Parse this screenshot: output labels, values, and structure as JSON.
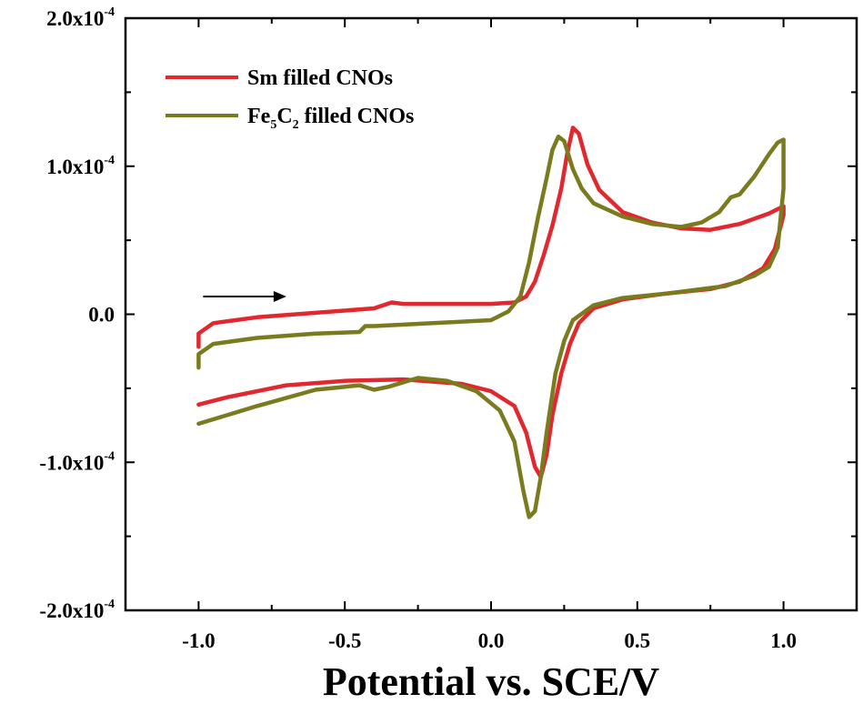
{
  "chart_data": {
    "type": "line",
    "title": "",
    "xlabel": "Potential vs. SCE/V",
    "ylabel": "",
    "xlim": [
      -1.25,
      1.25
    ],
    "ylim": [
      -0.0002,
      0.0002
    ],
    "x_ticks": [
      -1.0,
      -0.5,
      0.0,
      0.5,
      1.0
    ],
    "x_tick_labels": [
      "-1.0",
      "-0.5",
      "0.0",
      "0.5",
      "1.0"
    ],
    "y_ticks": [
      0.0002,
      0.0001,
      0.0,
      -0.0001,
      -0.0002
    ],
    "y_tick_labels": [
      {
        "mantissa": "2.0x10",
        "exp": "-4"
      },
      {
        "mantissa": "1.0x10",
        "exp": "-4"
      },
      {
        "mantissa": "0.0",
        "exp": ""
      },
      {
        "mantissa": "-1.0x10",
        "exp": "-4"
      },
      {
        "mantissa": "-2.0x10",
        "exp": "-4"
      }
    ],
    "grid": false,
    "legend_position": "top-left",
    "annotation": {
      "type": "arrow",
      "direction": "right",
      "from": [
        -1.0,
        1.2e-05
      ],
      "to": [
        -0.7,
        1.2e-05
      ]
    },
    "series": [
      {
        "name": "Sm filled CNOs",
        "color": "#e0282e",
        "x": [
          -1.0,
          -1.0,
          -0.95,
          -0.8,
          -0.6,
          -0.4,
          -0.34,
          -0.3,
          -0.1,
          0.0,
          0.08,
          0.12,
          0.15,
          0.18,
          0.21,
          0.24,
          0.26,
          0.28,
          0.3,
          0.33,
          0.37,
          0.45,
          0.55,
          0.65,
          0.75,
          0.85,
          0.95,
          1.0,
          1.0,
          0.97,
          0.93,
          0.85,
          0.75,
          0.6,
          0.45,
          0.35,
          0.3,
          0.27,
          0.24,
          0.21,
          0.19,
          0.17,
          0.15,
          0.12,
          0.08,
          0.0,
          -0.1,
          -0.3,
          -0.5,
          -0.7,
          -0.9,
          -1.0
        ],
        "y": [
          -2.2e-05,
          -1.3e-05,
          -6e-06,
          -2e-06,
          1e-06,
          4e-06,
          8e-06,
          7e-06,
          7e-06,
          7e-06,
          8e-06,
          1.2e-05,
          2.2e-05,
          4e-05,
          6e-05,
          8.5e-05,
          0.000108,
          0.000126,
          0.000122,
          0.000101,
          8.4e-05,
          6.9e-05,
          6.2e-05,
          5.8e-05,
          5.7e-05,
          6.1e-05,
          6.8e-05,
          7.3e-05,
          6.7e-05,
          4.4e-05,
          3.1e-05,
          2.2e-05,
          1.7e-05,
          1.4e-05,
          1e-05,
          4e-06,
          -6e-06,
          -2e-05,
          -4e-05,
          -6.8e-05,
          -9.5e-05,
          -0.00011,
          -0.000103,
          -8e-05,
          -6.2e-05,
          -5.2e-05,
          -4.7e-05,
          -4.4e-05,
          -4.5e-05,
          -4.8e-05,
          -5.6e-05,
          -6.1e-05
        ]
      },
      {
        "name": "Fe5C2 filled CNOs",
        "color": "#7a7a1e",
        "x": [
          -1.0,
          -1.0,
          -0.95,
          -0.8,
          -0.6,
          -0.45,
          -0.43,
          -0.4,
          -0.2,
          0.0,
          0.06,
          0.1,
          0.13,
          0.16,
          0.19,
          0.21,
          0.23,
          0.25,
          0.28,
          0.31,
          0.35,
          0.45,
          0.55,
          0.65,
          0.72,
          0.78,
          0.82,
          0.85,
          0.9,
          0.95,
          0.98,
          1.0,
          1.0,
          0.98,
          0.95,
          0.9,
          0.8,
          0.6,
          0.45,
          0.35,
          0.28,
          0.25,
          0.22,
          0.19,
          0.17,
          0.15,
          0.13,
          0.11,
          0.08,
          0.03,
          -0.05,
          -0.15,
          -0.25,
          -0.35,
          -0.4,
          -0.45,
          -0.6,
          -0.8,
          -1.0
        ],
        "y": [
          -3.6e-05,
          -2.7e-05,
          -2e-05,
          -1.6e-05,
          -1.3e-05,
          -1.2e-05,
          -8e-06,
          -8e-06,
          -6e-06,
          -4e-06,
          2e-06,
          1.2e-05,
          3.5e-05,
          6.5e-05,
          9.2e-05,
          0.000111,
          0.00012,
          0.000117,
          9.8e-05,
          8.5e-05,
          7.5e-05,
          6.6e-05,
          6.1e-05,
          5.9e-05,
          6.2e-05,
          6.9e-05,
          7.9e-05,
          8.1e-05,
          9.3e-05,
          0.000108,
          0.000116,
          0.000118,
          8.5e-05,
          4.5e-05,
          3.2e-05,
          2.6e-05,
          1.9e-05,
          1.4e-05,
          1.1e-05,
          6e-06,
          -4e-06,
          -1.8e-05,
          -4e-05,
          -8e-05,
          -0.00011,
          -0.000133,
          -0.000137,
          -0.000119,
          -8.6e-05,
          -6.5e-05,
          -5.2e-05,
          -4.5e-05,
          -4.3e-05,
          -4.9e-05,
          -5.1e-05,
          -4.8e-05,
          -5.1e-05,
          -6.2e-05,
          -7.4e-05
        ]
      }
    ]
  }
}
